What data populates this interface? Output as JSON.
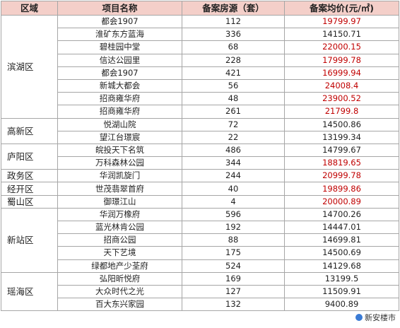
{
  "table": {
    "headers": {
      "region": "区域",
      "project": "项目名称",
      "units": "备案房源（套）",
      "price": "备案均价(元/㎡)"
    },
    "groups": [
      {
        "region": "滨湖区",
        "rows": [
          {
            "name": "都会1907",
            "units": "112",
            "price": "19799.97",
            "highlight": true
          },
          {
            "name": "淮矿东方蓝海",
            "units": "336",
            "price": "14150.71",
            "highlight": false
          },
          {
            "name": "碧桂园中堂",
            "units": "68",
            "price": "22000.15",
            "highlight": true
          },
          {
            "name": "信达公园里",
            "units": "228",
            "price": "17999.78",
            "highlight": true
          },
          {
            "name": "都会1907",
            "units": "421",
            "price": "16999.94",
            "highlight": true
          },
          {
            "name": "新城大都会",
            "units": "56",
            "price": "24008.4",
            "highlight": true
          },
          {
            "name": "招商雍华府",
            "units": "48",
            "price": "23900.52",
            "highlight": true
          },
          {
            "name": "招商雍华府",
            "units": "261",
            "price": "21799.8",
            "highlight": true
          }
        ]
      },
      {
        "region": "高新区",
        "rows": [
          {
            "name": "悦湖山院",
            "units": "72",
            "price": "14500.86",
            "highlight": false
          },
          {
            "name": "望江台璟宸",
            "units": "22",
            "price": "13199.34",
            "highlight": false
          }
        ]
      },
      {
        "region": "庐阳区",
        "rows": [
          {
            "name": "皖投天下名筑",
            "units": "486",
            "price": "14799.67",
            "highlight": false
          },
          {
            "name": "万科森林公园",
            "units": "344",
            "price": "18819.65",
            "highlight": true
          }
        ]
      },
      {
        "region": "政务区",
        "rows": [
          {
            "name": "华润凯旋门",
            "units": "244",
            "price": "20999.78",
            "highlight": true
          }
        ]
      },
      {
        "region": "经开区",
        "rows": [
          {
            "name": "世茂翡翠首府",
            "units": "40",
            "price": "19899.86",
            "highlight": true
          }
        ]
      },
      {
        "region": "蜀山区",
        "rows": [
          {
            "name": "御璟江山",
            "units": "4",
            "price": "20000.89",
            "highlight": true
          }
        ]
      },
      {
        "region": "新站区",
        "rows": [
          {
            "name": "华润万橡府",
            "units": "596",
            "price": "14700.26",
            "highlight": false
          },
          {
            "name": "蓝光林肯公园",
            "units": "192",
            "price": "14447.01",
            "highlight": false
          },
          {
            "name": "招商公园",
            "units": "88",
            "price": "14699.81",
            "highlight": false
          },
          {
            "name": "天下艺境",
            "units": "175",
            "price": "14500.69",
            "highlight": false
          },
          {
            "name": "绿都地产少荃府",
            "units": "524",
            "price": "14129.68",
            "highlight": false
          }
        ]
      },
      {
        "region": "瑶海区",
        "rows": [
          {
            "name": "弘阳昕悦府",
            "units": "169",
            "price": "13199.5",
            "highlight": false
          },
          {
            "name": "大众时代之光",
            "units": "127",
            "price": "11509.91",
            "highlight": false
          },
          {
            "name": "百大东兴家园",
            "units": "132",
            "price": "9400.89",
            "highlight": false
          }
        ]
      }
    ]
  },
  "colors": {
    "header_bg": "#f4cfc9",
    "highlight_price": "#c00000",
    "border": "#a6a6a6"
  },
  "watermark": {
    "text": "新安楼市",
    "icon": "wechat-icon"
  }
}
